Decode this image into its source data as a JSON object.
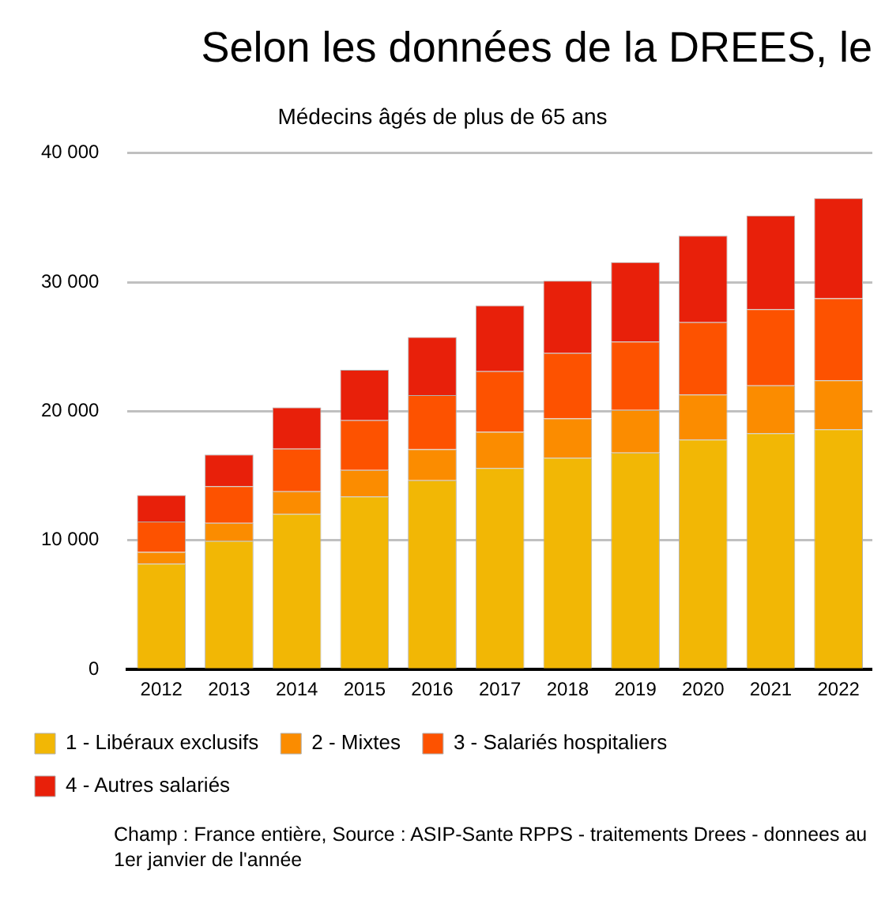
{
  "chart_data": {
    "type": "bar",
    "title": "Selon les données de la DREES, le",
    "subtitle": "Médecins âgés de plus de 65 ans",
    "categories": [
      "2012",
      "2013",
      "2014",
      "2015",
      "2016",
      "2017",
      "2018",
      "2019",
      "2020",
      "2021",
      "2022"
    ],
    "series": [
      {
        "name": "1 - Libéraux exclusifs",
        "color": "#f2b705",
        "values": [
          8200,
          9950,
          12050,
          13400,
          14650,
          15600,
          16400,
          16800,
          17800,
          18300,
          18600
        ]
      },
      {
        "name": "2 - Mixtes",
        "color": "#fb8c00",
        "values": [
          900,
          1400,
          1750,
          2050,
          2400,
          2800,
          3050,
          3300,
          3500,
          3700,
          3800
        ]
      },
      {
        "name": "3 - Salariés hospitaliers",
        "color": "#fd5200",
        "values": [
          2350,
          2850,
          3300,
          3850,
          4200,
          4700,
          5050,
          5300,
          5600,
          5900,
          6350
        ]
      },
      {
        "name": "4 - Autres salariés",
        "color": "#e8200a",
        "values": [
          2050,
          2450,
          3200,
          3900,
          4500,
          5100,
          5600,
          6150,
          6700,
          7250,
          7750
        ]
      }
    ],
    "stacked": true,
    "ylim": [
      0,
      40000
    ],
    "yticks": [
      0,
      {
        "value": 10000,
        "label": "10 000"
      },
      {
        "value": 20000,
        "label": "20 000"
      },
      {
        "value": 30000,
        "label": "30 000"
      },
      {
        "value": 40000,
        "label": "40 000"
      }
    ],
    "grid": "y",
    "legend": "bottom",
    "annotations": [
      "Champ :  France entière, Source : ASIP-Sante RPPS - traitements Drees - donnees au 1er janvier de l'année"
    ]
  }
}
